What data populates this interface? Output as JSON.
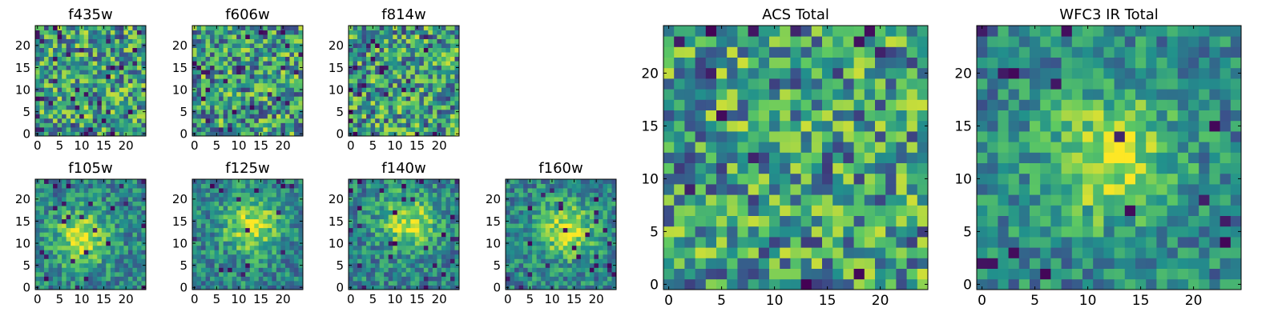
{
  "colormap": [
    "#440154",
    "#3b528b",
    "#21918c",
    "#5ec962",
    "#fde725"
  ],
  "chart_data": [
    {
      "type": "heatmap",
      "title": "f435w",
      "size": 25,
      "xticks": [
        0,
        5,
        10,
        15,
        20
      ],
      "yticks": [
        0,
        5,
        10,
        15,
        20
      ],
      "xlim": [
        0,
        25
      ],
      "ylim": [
        0,
        25
      ],
      "pattern": "noise",
      "seed": 11,
      "dark_fraction": 0.05
    },
    {
      "type": "heatmap",
      "title": "f606w",
      "size": 25,
      "xticks": [
        0,
        5,
        10,
        15,
        20
      ],
      "yticks": [
        0,
        5,
        10,
        15,
        20
      ],
      "xlim": [
        0,
        25
      ],
      "ylim": [
        0,
        25
      ],
      "pattern": "noise",
      "seed": 23,
      "dark_fraction": 0.04
    },
    {
      "type": "heatmap",
      "title": "f814w",
      "size": 25,
      "xticks": [
        0,
        5,
        10,
        15,
        20
      ],
      "yticks": [
        0,
        5,
        10,
        15,
        20
      ],
      "xlim": [
        0,
        25
      ],
      "ylim": [
        0,
        25
      ],
      "pattern": "noise",
      "seed": 37,
      "dark_fraction": 0.04
    },
    {
      "type": "heatmap",
      "title": "f105w",
      "size": 25,
      "xticks": [
        0,
        5,
        10,
        15,
        20
      ],
      "yticks": [
        0,
        5,
        10,
        15,
        20
      ],
      "xlim": [
        0,
        25
      ],
      "ylim": [
        0,
        25
      ],
      "pattern": "source",
      "center": [
        10,
        11
      ],
      "seed": 41,
      "dark_fraction": 0.06
    },
    {
      "type": "heatmap",
      "title": "f125w",
      "size": 25,
      "xticks": [
        0,
        5,
        10,
        15,
        20
      ],
      "yticks": [
        0,
        5,
        10,
        15,
        20
      ],
      "xlim": [
        0,
        25
      ],
      "ylim": [
        0,
        25
      ],
      "pattern": "source",
      "center": [
        13,
        14
      ],
      "seed": 53,
      "dark_fraction": 0.03
    },
    {
      "type": "heatmap",
      "title": "f140w",
      "size": 25,
      "xticks": [
        0,
        5,
        10,
        15,
        20
      ],
      "yticks": [
        0,
        5,
        10,
        15,
        20
      ],
      "xlim": [
        0,
        25
      ],
      "ylim": [
        0,
        25
      ],
      "pattern": "source",
      "center": [
        13,
        15
      ],
      "seed": 67,
      "dark_fraction": 0.04
    },
    {
      "type": "heatmap",
      "title": "f160w",
      "size": 25,
      "xticks": [
        0,
        5,
        10,
        15,
        20
      ],
      "yticks": [
        0,
        5,
        10,
        15,
        20
      ],
      "xlim": [
        0,
        25
      ],
      "ylim": [
        0,
        25
      ],
      "pattern": "source",
      "center": [
        13,
        13
      ],
      "seed": 79,
      "dark_fraction": 0.04
    },
    {
      "type": "heatmap",
      "title": "ACS Total",
      "size": 25,
      "xticks": [
        0,
        5,
        10,
        15,
        20
      ],
      "yticks": [
        0,
        5,
        10,
        15,
        20
      ],
      "xlim": [
        0,
        25
      ],
      "ylim": [
        0,
        25
      ],
      "pattern": "noise",
      "seed": 97,
      "dark_fraction": 0.02
    },
    {
      "type": "heatmap",
      "title": "WFC3 IR Total",
      "size": 25,
      "xticks": [
        0,
        5,
        10,
        15,
        20
      ],
      "yticks": [
        0,
        5,
        10,
        15,
        20
      ],
      "xlim": [
        0,
        25
      ],
      "ylim": [
        0,
        25
      ],
      "pattern": "source",
      "center": [
        12,
        12
      ],
      "seed": 113,
      "dark_fraction": 0.02
    }
  ]
}
